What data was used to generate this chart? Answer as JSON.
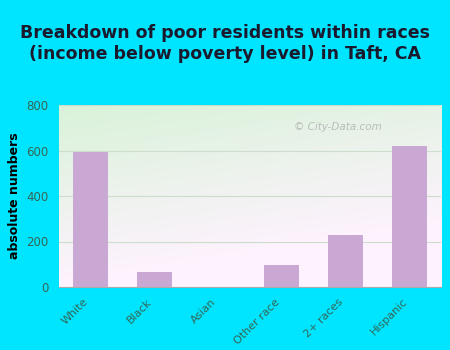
{
  "title": "Breakdown of poor residents within races\n(income below poverty level) in Taft, CA",
  "categories": [
    "White",
    "Black",
    "Asian",
    "Other race",
    "2+ races",
    "Hispanic"
  ],
  "values": [
    595,
    65,
    0,
    95,
    228,
    620
  ],
  "bar_color": "#c9a8d4",
  "ylabel": "absolute numbers",
  "ylim": [
    0,
    800
  ],
  "yticks": [
    0,
    200,
    400,
    600,
    800
  ],
  "background_color": "#00e5ff",
  "grid_color": "#ccddcc",
  "title_fontsize": 12.5,
  "ylabel_fontsize": 9,
  "tick_color": "#336655",
  "title_color": "#1a1a2e"
}
